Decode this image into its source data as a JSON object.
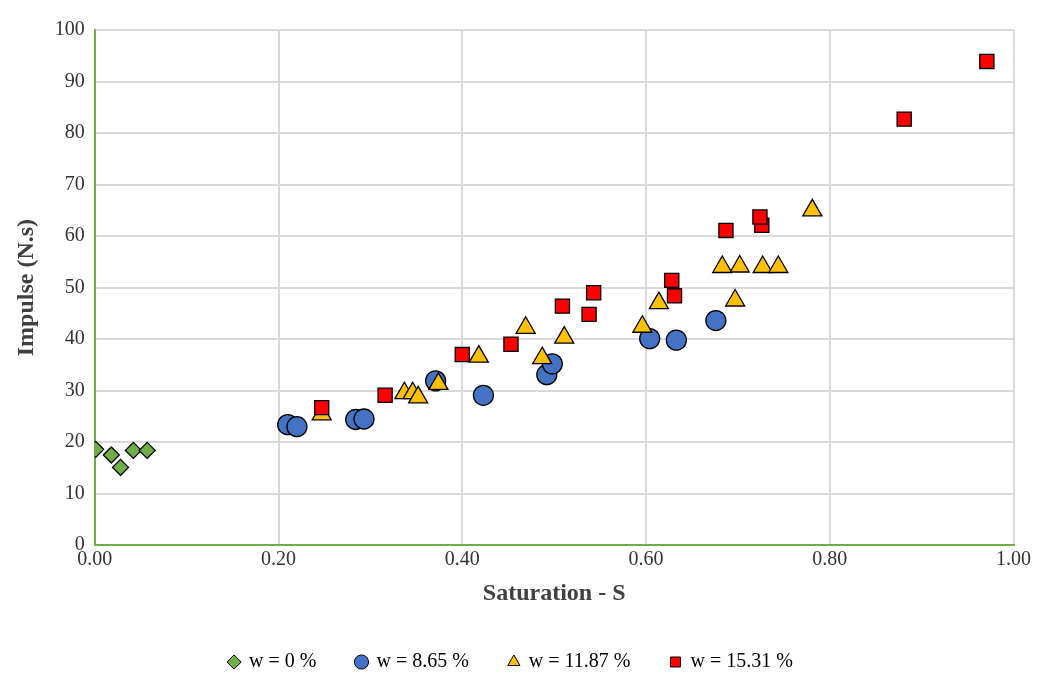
{
  "chart_data": {
    "type": "scatter",
    "xlabel": "Saturation - S",
    "ylabel": "Impulse (N.s)",
    "xlim": [
      0,
      1
    ],
    "xticks": [
      {
        "value": 0,
        "label": "0.00"
      },
      {
        "value": 0.2,
        "label": "0.20"
      },
      {
        "value": 0.4,
        "label": "0.40"
      },
      {
        "value": 0.6,
        "label": "0.60"
      },
      {
        "value": 0.8,
        "label": "0.80"
      },
      {
        "value": 1,
        "label": "1.00"
      }
    ],
    "ylim": [
      0,
      100
    ],
    "yticks": [
      0,
      10,
      20,
      30,
      40,
      50,
      60,
      70,
      80,
      90,
      100
    ],
    "grid": true,
    "legend": "bottom",
    "series": [
      {
        "name": "w = 0 %",
        "color": "#70ad47",
        "marker": "diamond",
        "x": [
          0.001,
          0.018,
          0.028,
          0.042,
          0.057
        ],
        "values": [
          18.6,
          17.5,
          15.1,
          18.4,
          18.4
        ]
      },
      {
        "name": "w = 8.65 %",
        "color": "#4472c4",
        "marker": "circle",
        "x": [
          0.21,
          0.22,
          0.284,
          0.293,
          0.371,
          0.423,
          0.492,
          0.498,
          0.604,
          0.633,
          0.676
        ],
        "values": [
          23.4,
          23.0,
          24.4,
          24.5,
          31.9,
          29.1,
          33.1,
          35.2,
          40.1,
          39.8,
          43.6
        ]
      },
      {
        "name": "w = 11.87 %",
        "color": "#ffc000",
        "marker": "triangle",
        "x": [
          0.247,
          0.337,
          0.346,
          0.352,
          0.374,
          0.418,
          0.469,
          0.487,
          0.511,
          0.596,
          0.614,
          0.697,
          0.683,
          0.702,
          0.727,
          0.744,
          0.781
        ],
        "values": [
          25.4,
          29.5,
          29.5,
          28.7,
          31.3,
          36.6,
          42.2,
          36.3,
          40.3,
          42.4,
          47.0,
          47.5,
          54.0,
          54.1,
          54.0,
          54.0,
          65.0
        ]
      },
      {
        "name": "w = 15.31 %",
        "color": "#ff0000",
        "marker": "square",
        "x": [
          0.247,
          0.316,
          0.4,
          0.453,
          0.509,
          0.538,
          0.543,
          0.628,
          0.631,
          0.687,
          0.726,
          0.724,
          0.881,
          0.971
        ],
        "values": [
          26.7,
          29.1,
          37.0,
          39.0,
          46.4,
          44.8,
          49.0,
          51.4,
          48.4,
          61.1,
          62.1,
          63.7,
          82.7,
          93.9
        ]
      }
    ]
  }
}
